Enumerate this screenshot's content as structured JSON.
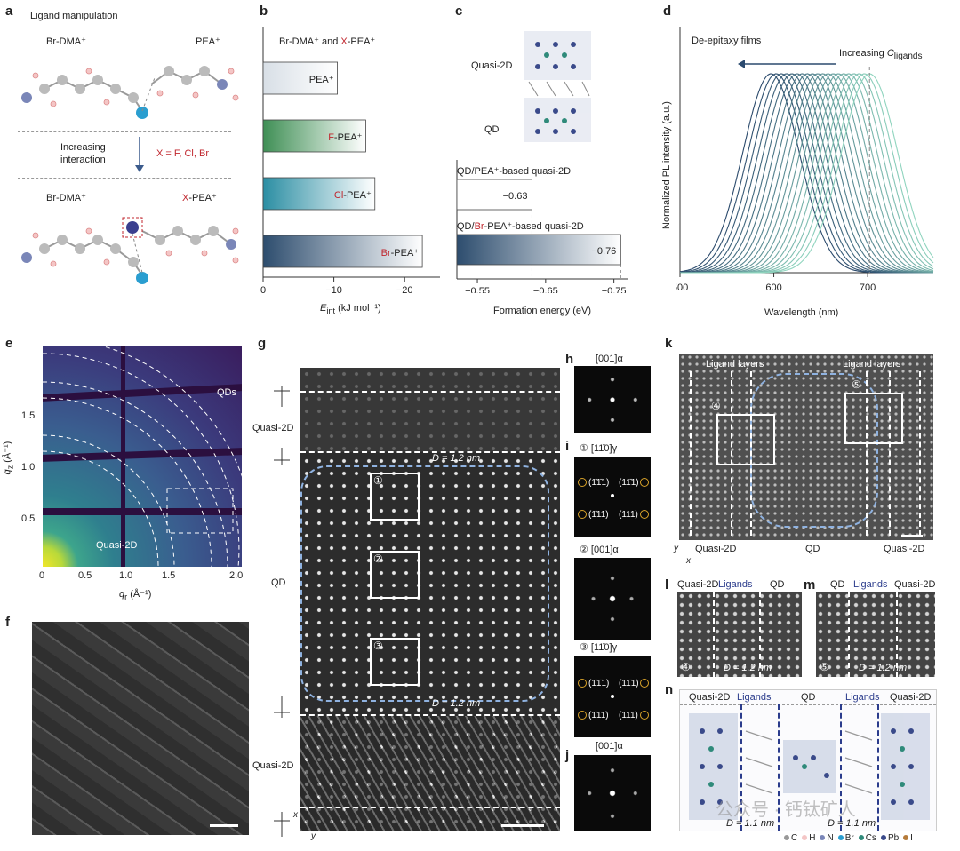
{
  "panels": {
    "a": {
      "letter": "a",
      "title": "Ligand manipulation",
      "top_left": "Br-DMA⁺",
      "top_right": "PEA⁺",
      "middle_label": "Increasing interaction",
      "middle_label_line1": "Increasing",
      "middle_label_line2": "interaction",
      "x_subs": "X = F, Cl, Br",
      "bottom_left": "Br-DMA⁺",
      "bottom_right_prefix": "X",
      "bottom_right_suffix": "-PEA⁺"
    },
    "b": {
      "letter": "b",
      "title_prefix": "Br-DMA⁺ and ",
      "title_x": "X",
      "title_suffix": "-PEA⁺",
      "xlabel": "E_int (kJ mol⁻¹)",
      "xlabel_main": "E",
      "xlabel_sub": "int",
      "xlabel_tail": " (kJ mol⁻¹)"
    },
    "c": {
      "letter": "c",
      "quasi2d": "Quasi-2D",
      "qd": "QD",
      "bar1_label": "QD/PEA⁺-based quasi-2D",
      "bar2_label_prefix": "QD/",
      "bar2_label_red": "Br",
      "bar2_label_suffix": "-PEA⁺-based quasi-2D",
      "xlabel": "Formation energy (eV)"
    },
    "d": {
      "letter": "d",
      "title": "De-epitaxy films",
      "arrow_label_prefix": "Increasing ",
      "arrow_label_c": "C",
      "arrow_label_sub": "ligands",
      "xlabel": "Wavelength (nm)",
      "ylabel": "Normalized PL intensity (a.u.)"
    },
    "e": {
      "letter": "e",
      "qds": "QDs",
      "quasi2d": "Quasi-2D",
      "xlabel_main": "q",
      "xlabel_sub": "r",
      "xlabel_tail": " (Å⁻¹)",
      "ylabel_main": "q",
      "ylabel_sub": "z",
      "ylabel_tail": " (Å⁻¹)",
      "xticks": [
        "0",
        "0.5",
        "1.0",
        "1.5",
        "2.0"
      ],
      "yticks": [
        "0.5",
        "1.0",
        "1.5"
      ]
    },
    "f": {
      "letter": "f"
    },
    "g": {
      "letter": "g",
      "quasi2d_top": "Quasi-2D",
      "qd": "QD",
      "quasi2d_bottom": "Quasi-2D",
      "d_top": "D = 1.2 nm",
      "d_bottom": "D = 1.2 nm",
      "box1": "①",
      "box2": "②",
      "box3": "③",
      "axis_x": "x",
      "axis_y": "y"
    },
    "h": {
      "letter": "h",
      "label": "[001]α"
    },
    "i": {
      "letter": "i",
      "label1": "① [11̄0]γ",
      "label2": "② [001]α",
      "label3": "③ [11̄0]γ",
      "spots": [
        "(1̄1̄1)",
        "(11̄1)",
        "(1̄11)",
        "(111)"
      ]
    },
    "j": {
      "letter": "j",
      "label": "[001]α"
    },
    "k": {
      "letter": "k",
      "ligands_left": "Ligand layers",
      "ligands_right": "Ligand layers",
      "box4": "④",
      "box5": "⑤",
      "quasi2d_left": "Quasi-2D",
      "qd": "QD",
      "quasi2d_right": "Quasi-2D",
      "axis_x": "x",
      "axis_y": "y"
    },
    "l": {
      "letter": "l",
      "quasi2d": "Quasi-2D",
      "ligands": "Ligands",
      "qd": "QD",
      "d": "D = 1.2 nm",
      "num": "④"
    },
    "m": {
      "letter": "m",
      "qd": "QD",
      "ligands": "Ligands",
      "quasi2d": "Quasi-2D",
      "d": "D = 1.2 nm",
      "num": "⑤"
    },
    "n": {
      "letter": "n",
      "labels": [
        "Quasi-2D",
        "Ligands",
        "QD",
        "Ligands",
        "Quasi-2D"
      ],
      "d_left": "D = 1.1 nm",
      "d_right": "D = 1.1 nm",
      "legend": [
        "C",
        "H",
        "N",
        "Br",
        "Cs",
        "Pb",
        "I"
      ],
      "watermark": "公众号 · 钙钛矿人"
    }
  },
  "chart_data": [
    {
      "type": "bar",
      "orientation": "horizontal",
      "panel": "b",
      "categories": [
        "PEA⁺",
        "F-PEA⁺",
        "Cl-PEA⁺",
        "Br-PEA⁺"
      ],
      "values": [
        -10.5,
        -14.5,
        -15.8,
        -22.5
      ],
      "xlim": [
        0,
        -25
      ],
      "xticks": [
        "0",
        "−10",
        "−20"
      ],
      "colors": [
        "#d8dfe6",
        "#3f8f55",
        "#2b8ea3",
        "#2d4d6e"
      ],
      "xlabel": "E_int (kJ mol⁻¹)"
    },
    {
      "type": "bar",
      "orientation": "horizontal",
      "panel": "c",
      "categories": [
        "QD/PEA⁺-based quasi-2D",
        "QD/Br-PEA⁺-based quasi-2D"
      ],
      "values": [
        -0.63,
        -0.76
      ],
      "value_labels": [
        "−0.63",
        "−0.76"
      ],
      "xlim": [
        -0.52,
        -0.77
      ],
      "xticks": [
        "−0.55",
        "−0.65",
        "−0.75"
      ],
      "colors": [
        "#ffffff",
        "#2d4d6e"
      ],
      "xlabel": "Formation energy (eV)"
    },
    {
      "type": "line",
      "panel": "d",
      "x_range": [
        500,
        770
      ],
      "xticks": [
        "500",
        "600",
        "700"
      ],
      "series_count": 20,
      "peak_first": 597,
      "peak_last": 702,
      "xlabel": "Wavelength (nm)",
      "ylabel": "Normalized PL intensity (a.u.)"
    }
  ]
}
